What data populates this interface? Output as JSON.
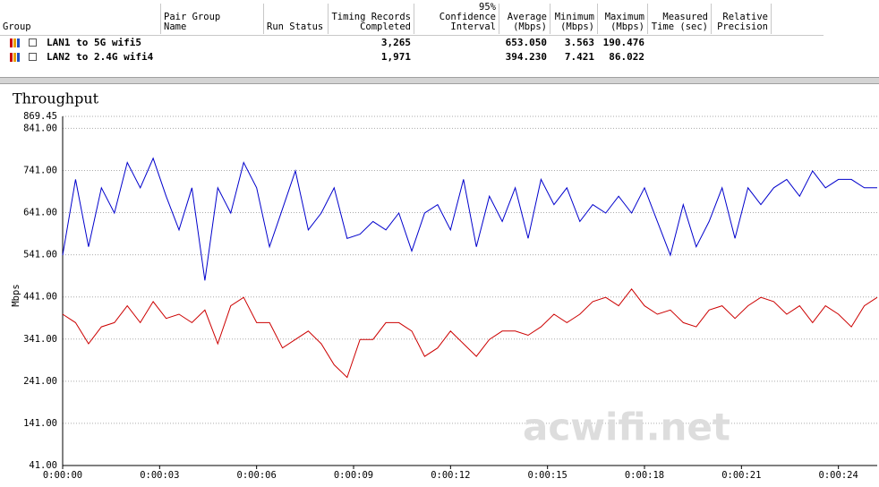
{
  "table": {
    "headers": [
      "Group",
      "Pair Group\nName",
      "Run Status",
      "Timing Records\nCompleted",
      "95% Confidence\nInterval",
      "Average\n(Mbps)",
      "Minimum\n(Mbps)",
      "Maximum\n(Mbps)",
      "Measured\nTime (sec)",
      "Relative\nPrecision"
    ],
    "rows": [
      {
        "name": "LAN1 to 5G wifi5",
        "records": "3,265",
        "average": "653.050",
        "minimum": "3.563",
        "maximum": "190.476"
      },
      {
        "name": "LAN2 to 2.4G wifi4",
        "records": "1,971",
        "average": "394.230",
        "minimum": "7.421",
        "maximum": "86.022"
      }
    ]
  },
  "chart_data": {
    "type": "line",
    "title": "Throughput",
    "y_label": "Mbps",
    "watermark": "acwifi.net",
    "xlim": [
      0,
      25.2
    ],
    "ylim": [
      41,
      869.45
    ],
    "xticks": [
      {
        "value": 0,
        "label": "0:00:00"
      },
      {
        "value": 3,
        "label": "0:00:03"
      },
      {
        "value": 6,
        "label": "0:00:06"
      },
      {
        "value": 9,
        "label": "0:00:09"
      },
      {
        "value": 12,
        "label": "0:00:12"
      },
      {
        "value": 15,
        "label": "0:00:15"
      },
      {
        "value": 18,
        "label": "0:00:18"
      },
      {
        "value": 21,
        "label": "0:00:21"
      },
      {
        "value": 24,
        "label": "0:00:24"
      }
    ],
    "yticks": [
      869.45,
      {
        "value": 841,
        "label": "841.00"
      },
      {
        "value": 741,
        "label": "741.00"
      },
      {
        "value": 641,
        "label": "641.00"
      },
      {
        "value": 541,
        "label": "541.00"
      },
      {
        "value": 441,
        "label": "441.00"
      },
      {
        "value": 341,
        "label": "341.00"
      },
      {
        "value": 241,
        "label": "241.00"
      },
      {
        "value": 141,
        "label": "141.00"
      },
      {
        "value": 41,
        "label": "41.00"
      }
    ],
    "grid": true,
    "x": [
      0,
      0.4,
      0.8,
      1.2,
      1.6,
      2.0,
      2.4,
      2.8,
      3.2,
      3.6,
      4.0,
      4.4,
      4.8,
      5.2,
      5.6,
      6.0,
      6.4,
      6.8,
      7.2,
      7.6,
      8.0,
      8.4,
      8.8,
      9.2,
      9.6,
      10.0,
      10.4,
      10.8,
      11.2,
      11.6,
      12.0,
      12.4,
      12.8,
      13.2,
      13.6,
      14.0,
      14.4,
      14.8,
      15.2,
      15.6,
      16.0,
      16.4,
      16.8,
      17.2,
      17.6,
      18.0,
      18.4,
      18.8,
      19.2,
      19.6,
      20.0,
      20.4,
      20.8,
      21.2,
      21.6,
      22.0,
      22.4,
      22.8,
      23.2,
      23.6,
      24.0,
      24.4,
      24.8,
      25.2
    ],
    "series": [
      {
        "color": "#0000cc",
        "values": [
          540,
          720,
          560,
          700,
          640,
          760,
          700,
          770,
          680,
          600,
          700,
          480,
          700,
          640,
          760,
          700,
          560,
          650,
          740,
          600,
          640,
          700,
          580,
          590,
          620,
          600,
          640,
          550,
          640,
          660,
          600,
          720,
          560,
          680,
          620,
          700,
          580,
          720,
          660,
          700,
          620,
          660,
          640,
          680,
          640,
          700,
          620,
          540,
          660,
          560,
          620,
          700,
          580,
          700,
          660,
          700,
          720,
          680,
          740,
          700,
          720,
          720,
          700,
          700
        ]
      },
      {
        "color": "#cc0000",
        "values": [
          400,
          380,
          330,
          370,
          380,
          420,
          380,
          430,
          390,
          400,
          380,
          410,
          330,
          420,
          440,
          380,
          380,
          320,
          340,
          360,
          330,
          280,
          250,
          340,
          340,
          380,
          380,
          360,
          300,
          320,
          360,
          330,
          300,
          340,
          360,
          360,
          350,
          370,
          400,
          380,
          400,
          430,
          440,
          420,
          460,
          420,
          400,
          410,
          380,
          370,
          410,
          420,
          390,
          420,
          440,
          430,
          400,
          420,
          380,
          420,
          400,
          370,
          420,
          440
        ]
      }
    ]
  }
}
